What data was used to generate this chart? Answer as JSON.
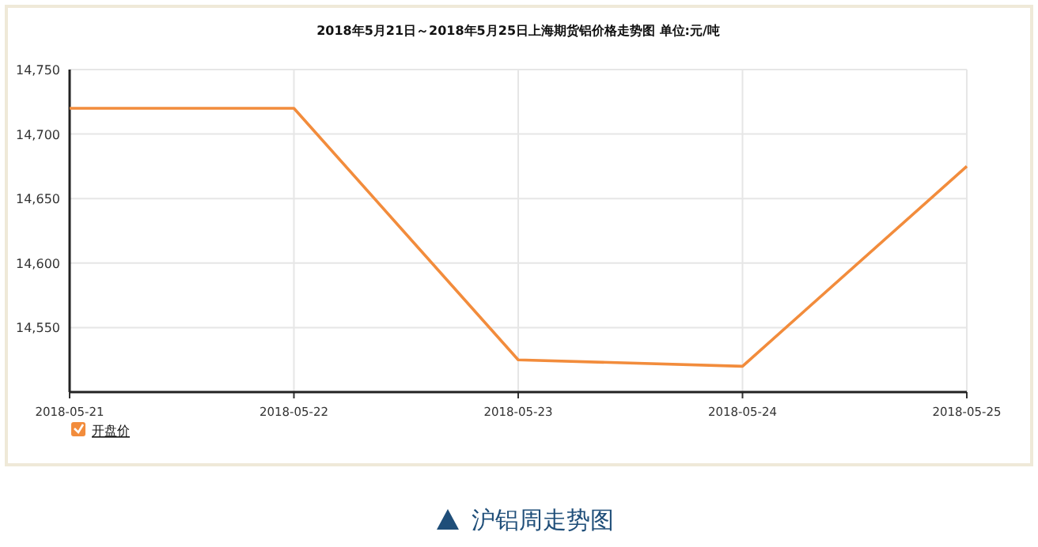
{
  "chart_data": {
    "type": "line",
    "title": "2018年5月21日～2018年5月25日上海期货铝价格走势图 单位:元/吨",
    "categories": [
      "2018-05-21",
      "2018-05-22",
      "2018-05-23",
      "2018-05-24",
      "2018-05-25"
    ],
    "series": [
      {
        "name": "开盘价",
        "color": "#f28c3c",
        "values": [
          14720,
          14720,
          14525,
          14520,
          14675
        ]
      }
    ],
    "ylim": [
      14500,
      14750
    ],
    "yticks": [
      {
        "value": 14500,
        "label": null
      },
      {
        "value": 14550,
        "label": "14,550"
      },
      {
        "value": 14600,
        "label": "14,600"
      },
      {
        "value": 14650,
        "label": "14,650"
      },
      {
        "value": 14700,
        "label": "14,700"
      },
      {
        "value": 14750,
        "label": "14,750"
      }
    ],
    "grid": true,
    "legend": "bottom left",
    "marker": "none",
    "line_style": "solid",
    "annotations": [
      "沪铝周走势图"
    ]
  }
}
